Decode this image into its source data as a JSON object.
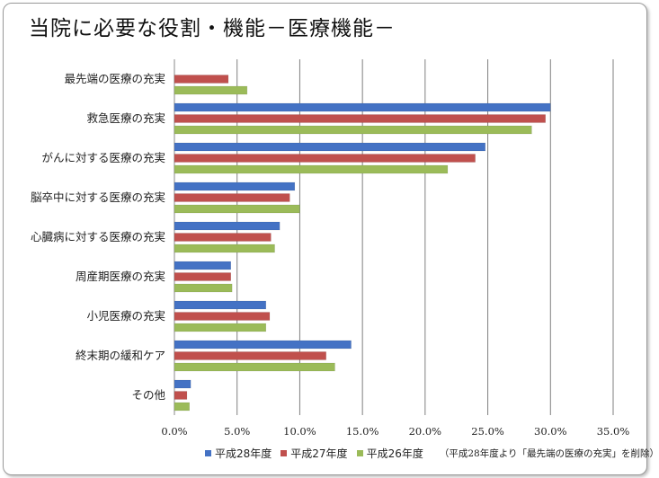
{
  "page_title": "当院に必要な役割・機能－医療機能－",
  "chart_data": {
    "type": "bar",
    "orientation": "horizontal",
    "categories": [
      "最先端の医療の充実",
      "救急医療の充実",
      "がんに対する医療の充実",
      "脳卒中に対する医療の充実",
      "心臓病に対する医療の充実",
      "周産期医療の充実",
      "小児医療の充実",
      "終末期の緩和ケア",
      "その他"
    ],
    "series": [
      {
        "name": "平成28年度",
        "color": "#4472c4",
        "values": [
          null,
          30.0,
          24.8,
          9.6,
          8.4,
          4.5,
          7.3,
          14.1,
          1.3
        ]
      },
      {
        "name": "平成27年度",
        "color": "#c0504d",
        "values": [
          4.3,
          29.6,
          24.0,
          9.2,
          7.7,
          4.5,
          7.6,
          12.1,
          1.0
        ]
      },
      {
        "name": "平成26年度",
        "color": "#9bbb59",
        "values": [
          5.8,
          28.5,
          21.8,
          10.0,
          8.0,
          4.6,
          7.3,
          12.8,
          1.2
        ]
      }
    ],
    "xlim": [
      0,
      35
    ],
    "x_ticks": [
      "0.0%",
      "5.0%",
      "10.0%",
      "15.0%",
      "20.0%",
      "25.0%",
      "30.0%",
      "35.0%"
    ],
    "grid": true,
    "legend_position": "bottom",
    "annotation": "（平成28年度より「最先端の医療の充実」を削除）"
  }
}
